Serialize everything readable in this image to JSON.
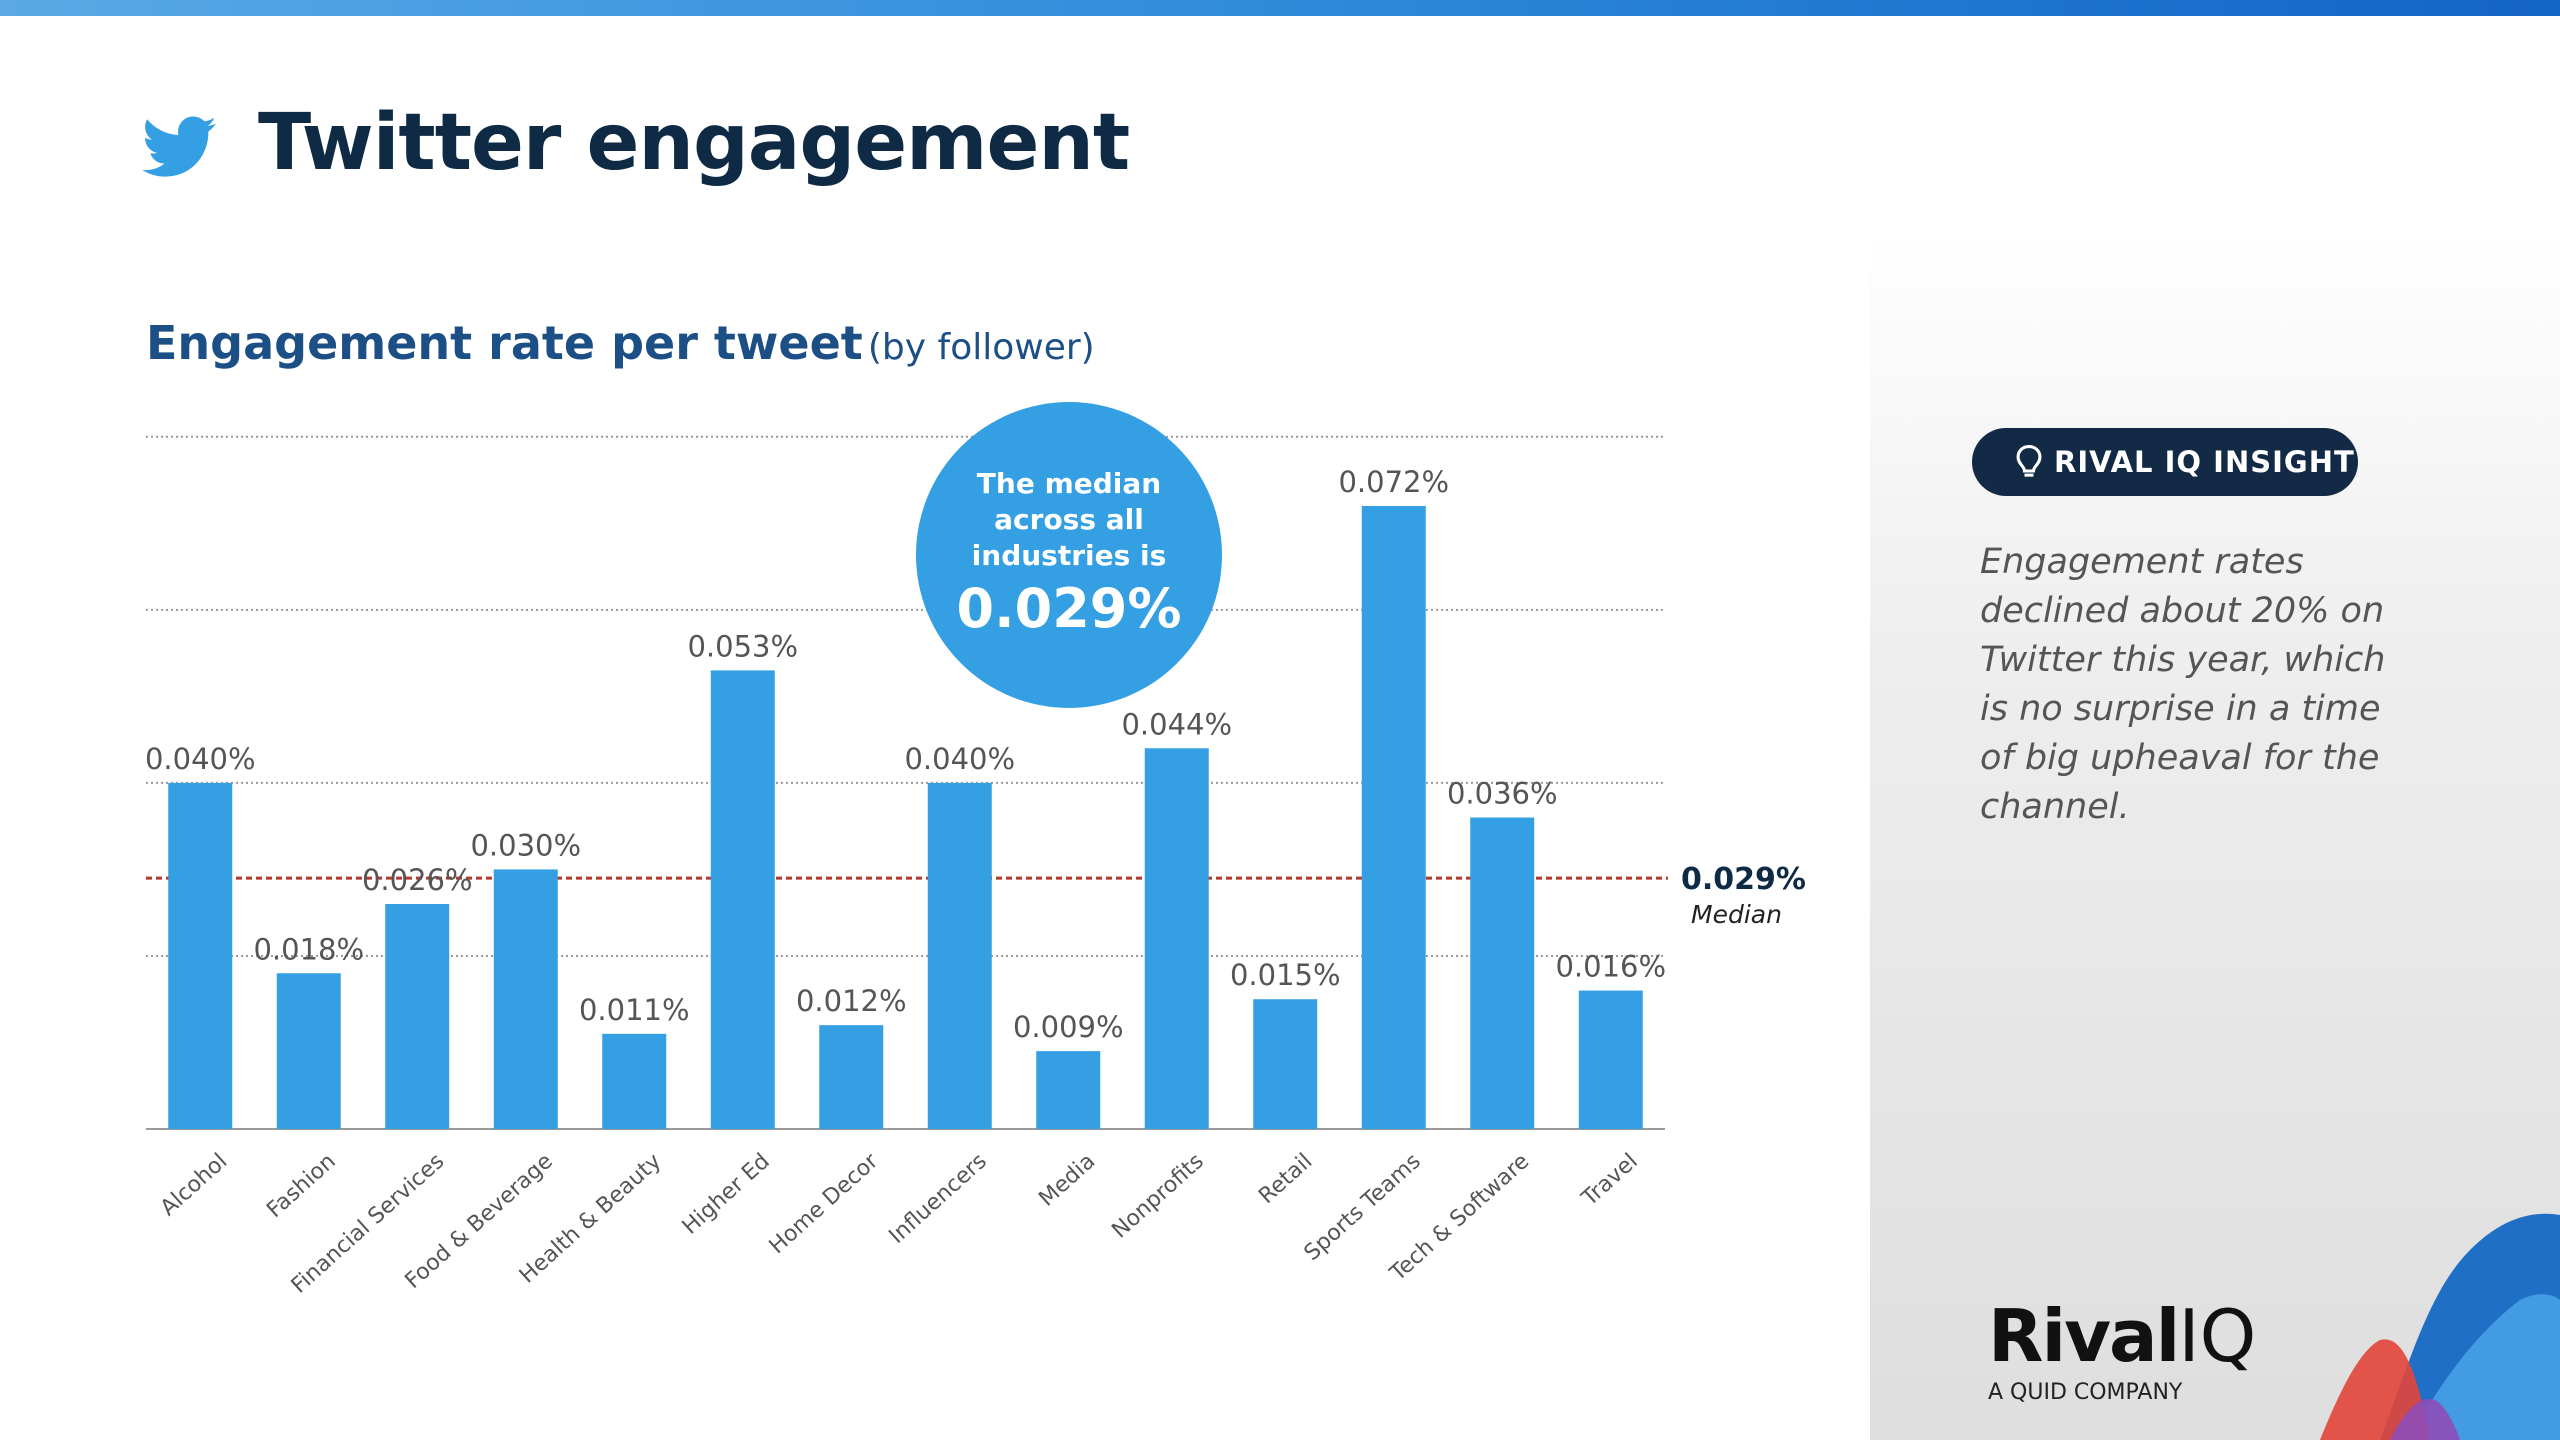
{
  "header": {
    "title": "Twitter engagement"
  },
  "chart_data": {
    "type": "bar",
    "title": "Engagement rate per tweet",
    "subtitle": "(by follower)",
    "categories": [
      "Alcohol",
      "Fashion",
      "Financial Services",
      "Food & Beverage",
      "Health & Beauty",
      "Higher Ed",
      "Home Decor",
      "Influencers",
      "Media",
      "Nonprofits",
      "Retail",
      "Sports Teams",
      "Tech & Software",
      "Travel"
    ],
    "values": [
      0.04,
      0.018,
      0.026,
      0.03,
      0.011,
      0.053,
      0.012,
      0.04,
      0.009,
      0.044,
      0.015,
      0.072,
      0.036,
      0.016
    ],
    "labels": [
      "0.040%",
      "0.018%",
      "0.026%",
      "0.030%",
      "0.011%",
      "0.053%",
      "0.012%",
      "0.040%",
      "0.009%",
      "0.044%",
      "0.015%",
      "0.072%",
      "0.036%",
      "0.016%"
    ],
    "ylim": [
      0,
      0.08
    ],
    "grid": true,
    "bar_color": "#349fe3",
    "median": {
      "value": 0.029,
      "label": "0.029%",
      "caption": "Median",
      "color": "#b03a2e"
    }
  },
  "median_bubble": {
    "lines": [
      "The median",
      "across all",
      "industries is"
    ],
    "value": "0.029%"
  },
  "insight": {
    "badge": "RIVAL IQ INSIGHT",
    "text": "Engagement rates declined about 20% on Twitter this year, which is no surprise in a time of big upheaval for the channel."
  },
  "logo": {
    "word_main": "Rival",
    "word_iq": "IQ",
    "tagline": "A QUID COMPANY"
  },
  "colors": {
    "navy": "#0f2a44",
    "accent": "#349fe3",
    "badge": "#122a45"
  },
  "icons": {
    "header": "twitter-bird-icon",
    "badge": "lightbulb-icon"
  }
}
